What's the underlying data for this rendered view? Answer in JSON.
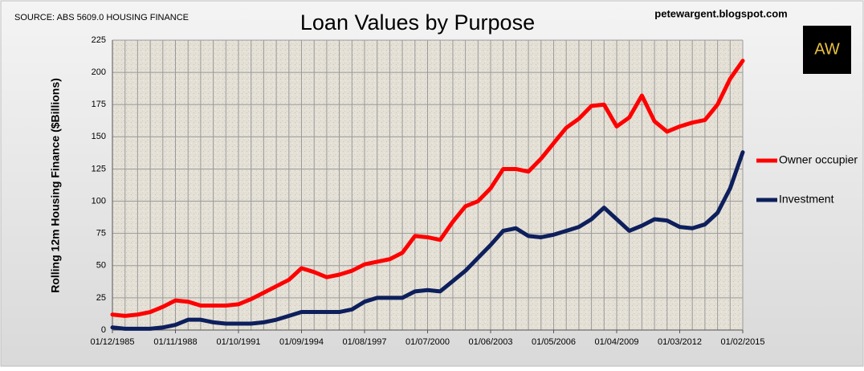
{
  "source": "SOURCE: ABS 5609.0 HOUSING FINANCE",
  "website": "petewargent.blogspot.com",
  "logo": "AW",
  "chart_data": {
    "type": "line",
    "title": "Loan Values by Purpose",
    "y_label": "Rolling 12m Housing Finance ($Billions)",
    "categories": [
      "01/12/1985",
      null,
      null,
      null,
      null,
      "01/11/1988",
      null,
      null,
      null,
      null,
      "01/10/1991",
      null,
      null,
      null,
      null,
      "01/09/1994",
      null,
      null,
      null,
      null,
      "01/08/1997",
      null,
      null,
      null,
      null,
      "01/07/2000",
      null,
      null,
      null,
      null,
      "01/06/2003",
      null,
      null,
      null,
      null,
      "01/05/2006",
      null,
      null,
      null,
      null,
      "01/04/2009",
      null,
      null,
      null,
      null,
      "01/03/2012",
      null,
      null,
      null,
      null,
      "01/02/2015"
    ],
    "series": [
      {
        "name": "Owner occupier",
        "color": "#ff0000",
        "values": [
          12,
          11,
          12,
          14,
          18,
          23,
          22,
          19,
          19,
          19,
          20,
          24,
          29,
          34,
          39,
          48,
          45,
          41,
          43,
          46,
          51,
          53,
          55,
          60,
          73,
          72,
          70,
          84,
          96,
          100,
          110,
          125,
          125,
          123,
          133,
          145,
          157,
          164,
          174,
          175,
          158,
          165,
          182,
          162,
          154,
          158,
          161,
          163,
          175,
          195,
          209
        ]
      },
      {
        "name": "Investment",
        "color": "#0d1f5c",
        "values": [
          2,
          1,
          1,
          1,
          2,
          4,
          8,
          8,
          6,
          5,
          5,
          5,
          6,
          8,
          11,
          14,
          14,
          14,
          14,
          16,
          22,
          25,
          25,
          25,
          30,
          31,
          30,
          38,
          46,
          56,
          66,
          77,
          79,
          73,
          72,
          74,
          77,
          80,
          86,
          95,
          86,
          77,
          81,
          86,
          85,
          80,
          79,
          82,
          91,
          110,
          138
        ]
      }
    ],
    "ylim": [
      0,
      225
    ],
    "yticks": [
      0,
      25,
      50,
      75,
      100,
      125,
      150,
      175,
      200,
      225
    ],
    "grid": true,
    "legend": "right"
  }
}
